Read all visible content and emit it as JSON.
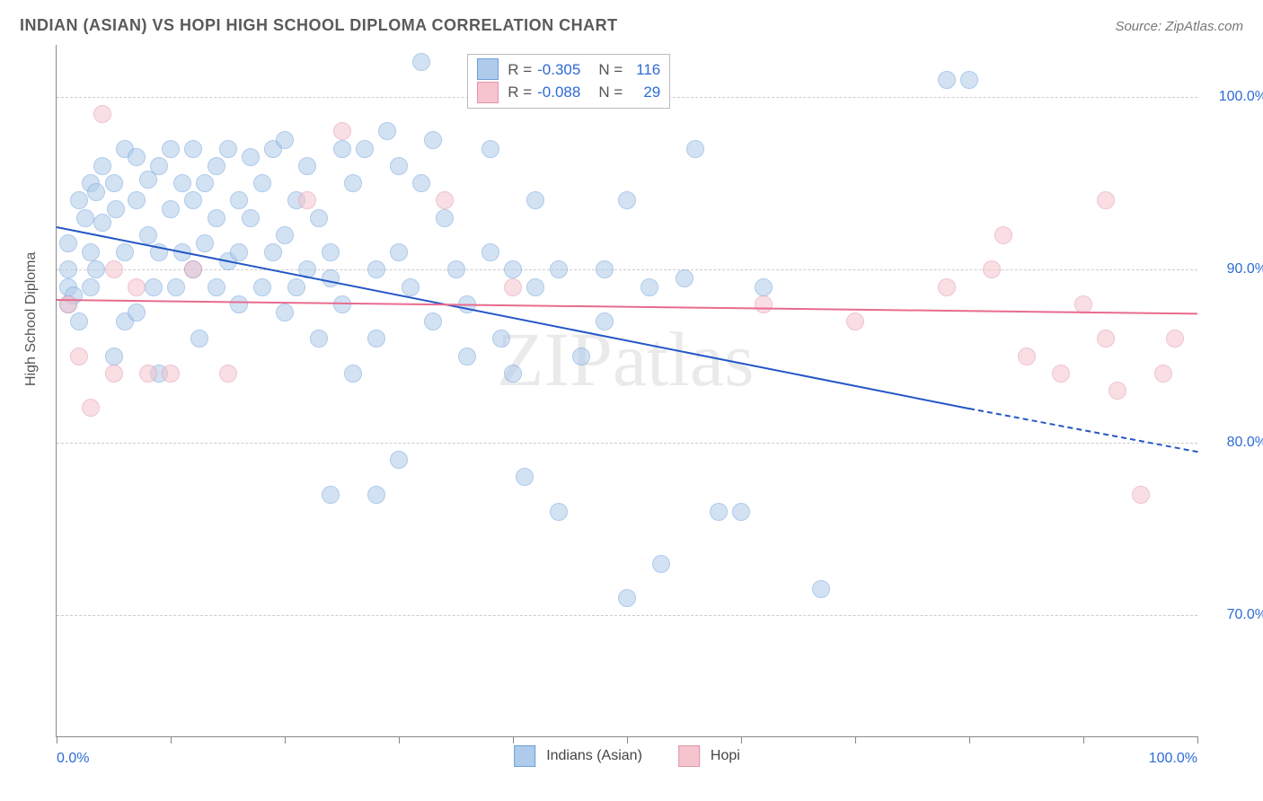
{
  "title": "INDIAN (ASIAN) VS HOPI HIGH SCHOOL DIPLOMA CORRELATION CHART",
  "source": "Source: ZipAtlas.com",
  "watermark": "ZIPatlas",
  "y_axis_title": "High School Diploma",
  "chart": {
    "type": "scatter",
    "xlim": [
      0,
      100
    ],
    "ylim": [
      63,
      103
    ],
    "y_ticks": [
      70,
      80,
      90,
      100
    ],
    "y_tick_labels": [
      "70.0%",
      "80.0%",
      "90.0%",
      "100.0%"
    ],
    "x_ticks": [
      0,
      10,
      20,
      30,
      40,
      50,
      60,
      70,
      80,
      90,
      100
    ],
    "x_label_min": "0.0%",
    "x_label_max": "100.0%",
    "grid_color": "#d0d0d0",
    "background_color": "#ffffff",
    "point_radius": 9,
    "point_border_width": 1.2,
    "series": [
      {
        "name": "Indians (Asian)",
        "fill": "#aecbeb",
        "stroke": "#6e9fd8",
        "fill_opacity": 0.55,
        "r": -0.305,
        "n": 116,
        "trend": {
          "x1": 0,
          "y1": 92.5,
          "x2": 80,
          "y2": 82,
          "color": "#2457c5",
          "width": 2.2,
          "dash_ext_to": 100,
          "dash_y2": 79.5
        },
        "points": [
          [
            1,
            89
          ],
          [
            1,
            90
          ],
          [
            1,
            88
          ],
          [
            1,
            91.5
          ],
          [
            1.5,
            88.5
          ],
          [
            2,
            94
          ],
          [
            2,
            87
          ],
          [
            2.5,
            93
          ],
          [
            3,
            95
          ],
          [
            3,
            91
          ],
          [
            3,
            89
          ],
          [
            3.5,
            90
          ],
          [
            3.5,
            94.5
          ],
          [
            4,
            92.7
          ],
          [
            4,
            96
          ],
          [
            5,
            85
          ],
          [
            5,
            95
          ],
          [
            5.2,
            93.5
          ],
          [
            6,
            97
          ],
          [
            6,
            87
          ],
          [
            6,
            91
          ],
          [
            7,
            94
          ],
          [
            7,
            96.5
          ],
          [
            7,
            87.5
          ],
          [
            8,
            92
          ],
          [
            8,
            95.2
          ],
          [
            8.5,
            89
          ],
          [
            9,
            96
          ],
          [
            9,
            91
          ],
          [
            9,
            84
          ],
          [
            10,
            97
          ],
          [
            10,
            93.5
          ],
          [
            10.5,
            89
          ],
          [
            11,
            95
          ],
          [
            11,
            91
          ],
          [
            12,
            94
          ],
          [
            12,
            97
          ],
          [
            12,
            90
          ],
          [
            12.5,
            86
          ],
          [
            13,
            95
          ],
          [
            13,
            91.5
          ],
          [
            14,
            89
          ],
          [
            14,
            96
          ],
          [
            14,
            93
          ],
          [
            15,
            97
          ],
          [
            15,
            90.5
          ],
          [
            16,
            94
          ],
          [
            16,
            88
          ],
          [
            16,
            91
          ],
          [
            17,
            96.5
          ],
          [
            17,
            93
          ],
          [
            18,
            89
          ],
          [
            18,
            95
          ],
          [
            19,
            97
          ],
          [
            19,
            91
          ],
          [
            20,
            97.5
          ],
          [
            20,
            92
          ],
          [
            20,
            87.5
          ],
          [
            21,
            89
          ],
          [
            21,
            94
          ],
          [
            22,
            96
          ],
          [
            22,
            90
          ],
          [
            23,
            86
          ],
          [
            23,
            93
          ],
          [
            24,
            89.5
          ],
          [
            24,
            91
          ],
          [
            25,
            97
          ],
          [
            25,
            88
          ],
          [
            26,
            95
          ],
          [
            26,
            84
          ],
          [
            27,
            97
          ],
          [
            28,
            90
          ],
          [
            28,
            86
          ],
          [
            29,
            98
          ],
          [
            30,
            96
          ],
          [
            30,
            91
          ],
          [
            31,
            89
          ],
          [
            32,
            102
          ],
          [
            32,
            95
          ],
          [
            33,
            87
          ],
          [
            33,
            97.5
          ],
          [
            34,
            93
          ],
          [
            35,
            90
          ],
          [
            36,
            85
          ],
          [
            36,
            88
          ],
          [
            38,
            91
          ],
          [
            38,
            97
          ],
          [
            39,
            86
          ],
          [
            40,
            84
          ],
          [
            40,
            90
          ],
          [
            41,
            78
          ],
          [
            42,
            89
          ],
          [
            42,
            94
          ],
          [
            44,
            76
          ],
          [
            44,
            90
          ],
          [
            44,
            101
          ],
          [
            46,
            101
          ],
          [
            46,
            85
          ],
          [
            48,
            87
          ],
          [
            48,
            90
          ],
          [
            50,
            94
          ],
          [
            50,
            71
          ],
          [
            52,
            89
          ],
          [
            53,
            73
          ],
          [
            55,
            89.5
          ],
          [
            56,
            97
          ],
          [
            58,
            76
          ],
          [
            60,
            76
          ],
          [
            62,
            89
          ],
          [
            67,
            71.5
          ],
          [
            78,
            101
          ],
          [
            80,
            101
          ],
          [
            24,
            77
          ],
          [
            28,
            77
          ],
          [
            30,
            79
          ]
        ]
      },
      {
        "name": "Hopi",
        "fill": "#f5c4cf",
        "stroke": "#e295a9",
        "fill_opacity": 0.55,
        "r": -0.088,
        "n": 29,
        "trend": {
          "x1": 0,
          "y1": 88.3,
          "x2": 100,
          "y2": 87.5,
          "color": "#e96b8e",
          "width": 2.2
        },
        "points": [
          [
            1,
            88
          ],
          [
            2,
            85
          ],
          [
            3,
            82
          ],
          [
            4,
            99
          ],
          [
            5,
            84
          ],
          [
            5,
            90
          ],
          [
            7,
            89
          ],
          [
            8,
            84
          ],
          [
            10,
            84
          ],
          [
            12,
            90
          ],
          [
            15,
            84
          ],
          [
            22,
            94
          ],
          [
            25,
            98
          ],
          [
            34,
            94
          ],
          [
            40,
            89
          ],
          [
            62,
            88
          ],
          [
            82,
            90
          ],
          [
            83,
            92
          ],
          [
            85,
            85
          ],
          [
            88,
            84
          ],
          [
            90,
            88
          ],
          [
            92,
            94
          ],
          [
            92,
            86
          ],
          [
            93,
            83
          ],
          [
            95,
            77
          ],
          [
            97,
            84
          ],
          [
            98,
            86
          ],
          [
            78,
            89
          ],
          [
            70,
            87
          ]
        ]
      }
    ],
    "legend_bottom": [
      {
        "label": "Indians (Asian)",
        "fill": "#aecbeb",
        "stroke": "#6e9fd8"
      },
      {
        "label": "Hopi",
        "fill": "#f5c4cf",
        "stroke": "#e295a9"
      }
    ]
  }
}
